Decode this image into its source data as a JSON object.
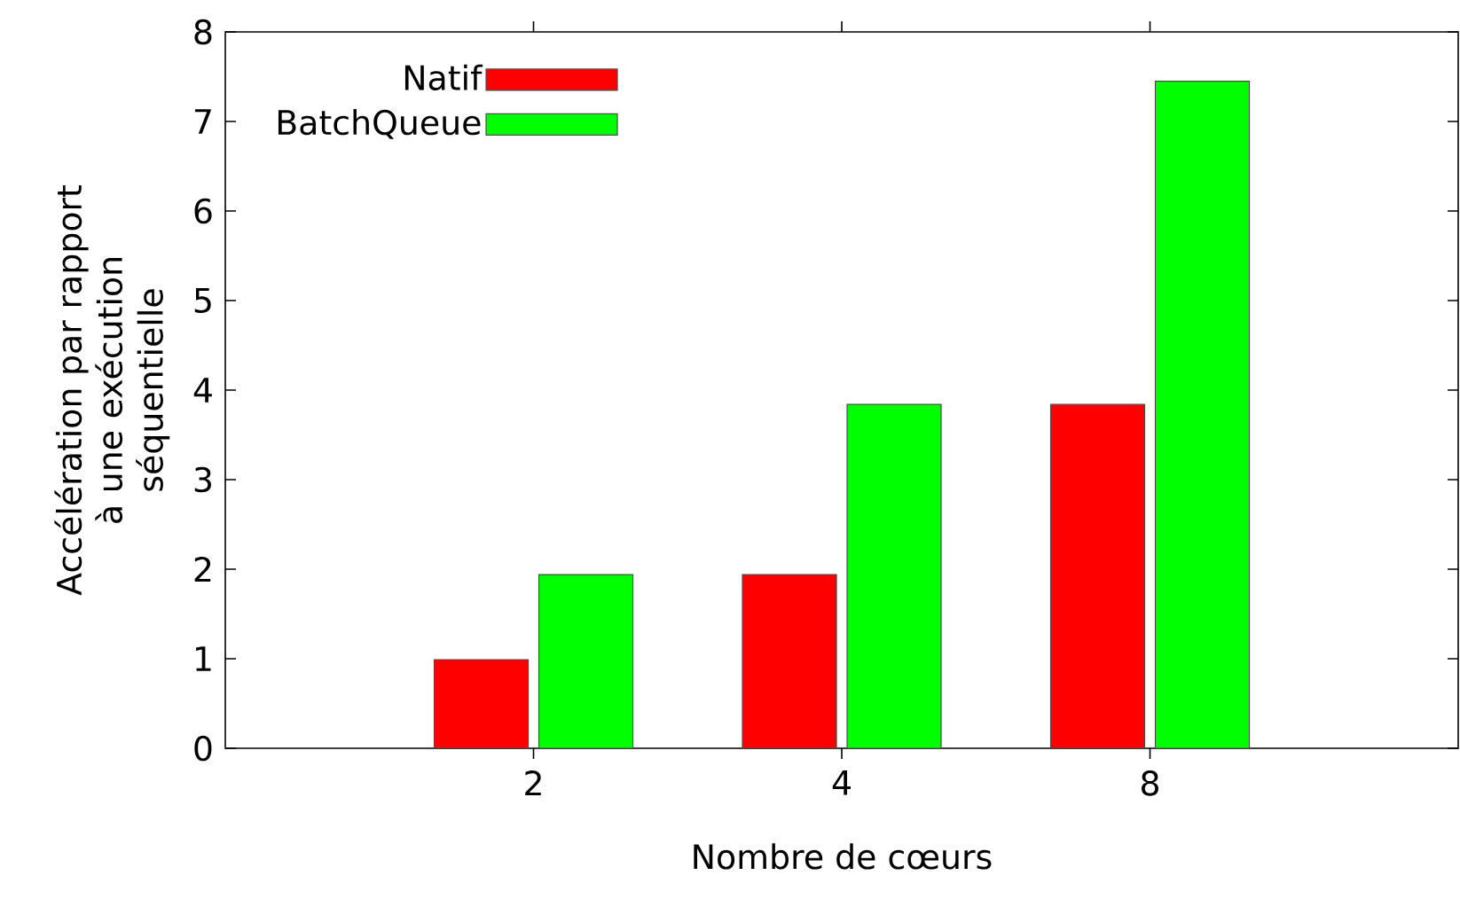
{
  "chart_data": {
    "type": "bar",
    "xlabel": "Nombre de cœurs",
    "ylabel": "Accélération par rapport\nà une exécution séquentielle",
    "categories": [
      "2",
      "4",
      "8"
    ],
    "series": [
      {
        "name": "Natif",
        "color": "#ff0000",
        "values": [
          0.99,
          1.94,
          3.84
        ]
      },
      {
        "name": "BatchQueue",
        "color": "#00ff00",
        "values": [
          1.94,
          3.84,
          7.45
        ]
      }
    ],
    "ylim": [
      0,
      8
    ],
    "yticks": [
      0,
      1,
      2,
      3,
      4,
      5,
      6,
      7,
      8
    ],
    "grid": false,
    "legend": "top left"
  }
}
